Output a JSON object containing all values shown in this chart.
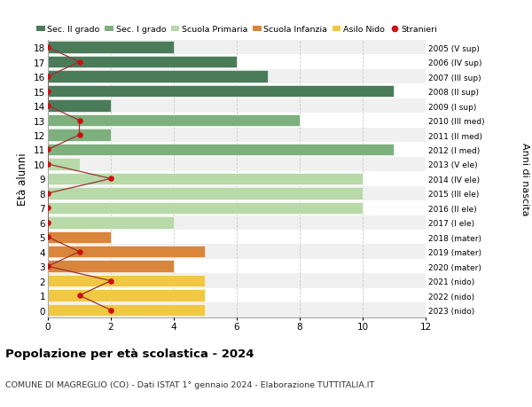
{
  "ages": [
    18,
    17,
    16,
    15,
    14,
    13,
    12,
    11,
    10,
    9,
    8,
    7,
    6,
    5,
    4,
    3,
    2,
    1,
    0
  ],
  "right_labels": [
    "2005 (V sup)",
    "2006 (IV sup)",
    "2007 (III sup)",
    "2008 (II sup)",
    "2009 (I sup)",
    "2010 (III med)",
    "2011 (II med)",
    "2012 (I med)",
    "2013 (V ele)",
    "2014 (IV ele)",
    "2015 (III ele)",
    "2016 (II ele)",
    "2017 (I ele)",
    "2018 (mater)",
    "2019 (mater)",
    "2020 (mater)",
    "2021 (nido)",
    "2022 (nido)",
    "2023 (nido)"
  ],
  "bar_values": [
    4,
    6,
    7,
    11,
    2,
    8,
    2,
    11,
    1,
    10,
    10,
    10,
    4,
    2,
    5,
    4,
    5,
    5,
    5
  ],
  "bar_colors": [
    "#4a7c59",
    "#4a7c59",
    "#4a7c59",
    "#4a7c59",
    "#4a7c59",
    "#7db07d",
    "#7db07d",
    "#7db07d",
    "#b8d9a8",
    "#b8d9a8",
    "#b8d9a8",
    "#b8d9a8",
    "#b8d9a8",
    "#d9853b",
    "#d9853b",
    "#d9853b",
    "#f0c843",
    "#f0c843",
    "#f0c843"
  ],
  "stranieri_values": [
    0,
    1,
    0,
    0,
    0,
    1,
    1,
    0,
    0,
    2,
    0,
    0,
    0,
    0,
    1,
    0,
    2,
    1,
    2
  ],
  "xlim": [
    0,
    12
  ],
  "ylim": [
    -0.5,
    18.5
  ],
  "ylabel": "Età alunni",
  "right_ylabel": "Anni di nascita",
  "title": "Popolazione per età scolastica - 2024",
  "subtitle": "COMUNE DI MAGREGLIO (CO) - Dati ISTAT 1° gennaio 2024 - Elaborazione TUTTITALIA.IT",
  "legend_labels": [
    "Sec. II grado",
    "Sec. I grado",
    "Scuola Primaria",
    "Scuola Infanzia",
    "Asilo Nido",
    "Stranieri"
  ],
  "legend_colors": [
    "#4a7c59",
    "#7db07d",
    "#b8d9a8",
    "#d9853b",
    "#f0c843",
    "#cc2222"
  ],
  "bar_height": 0.82,
  "grid_color": "#cccccc",
  "bg_color": "#ffffff",
  "row_bg_even": "#f0f0f0",
  "row_bg_odd": "#ffffff",
  "stranieri_line_color": "#993333",
  "stranieri_dot_color": "#cc1111"
}
